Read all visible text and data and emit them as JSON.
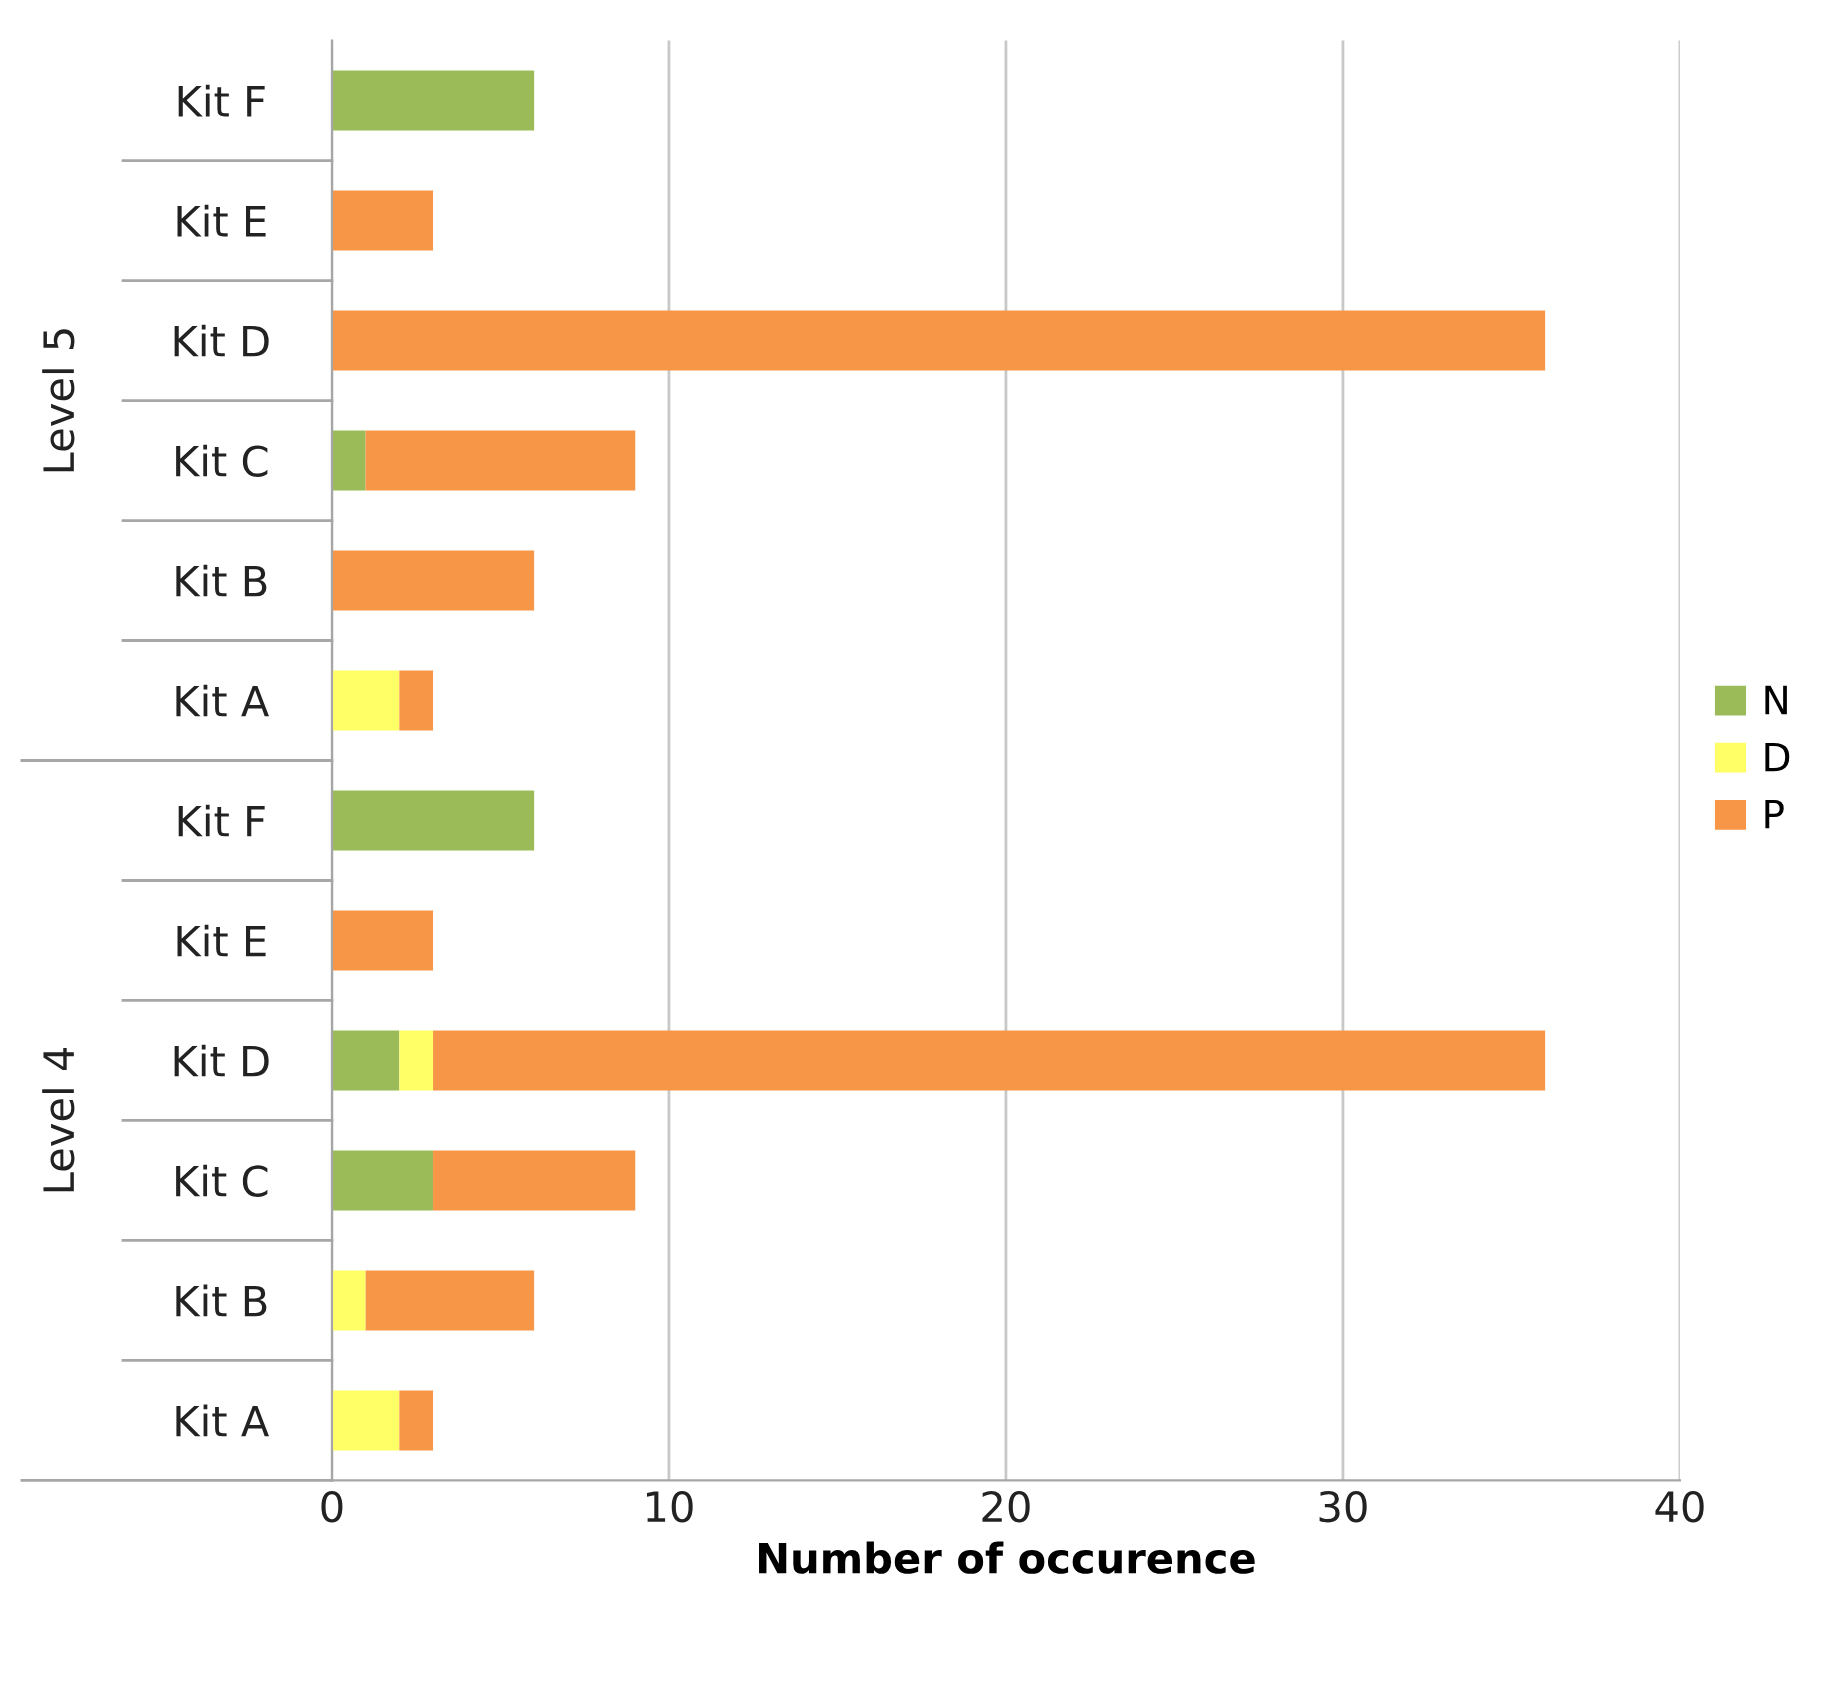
{
  "chart_data": {
    "type": "bar",
    "orientation": "horizontal",
    "stacked": true,
    "categories": [
      "Kit F",
      "Kit E",
      "Kit D",
      "Kit C",
      "Kit B",
      "Kit A",
      "Kit F",
      "Kit E",
      "Kit D",
      "Kit C",
      "Kit B",
      "Kit A"
    ],
    "series": [
      {
        "name": "N",
        "color": "#9bbb59",
        "values": [
          6,
          0,
          0,
          1,
          0,
          0,
          6,
          0,
          2,
          3,
          0,
          0
        ]
      },
      {
        "name": "D",
        "color": "#ffff66",
        "values": [
          0,
          0,
          0,
          0,
          0,
          2,
          0,
          0,
          1,
          0,
          1,
          2
        ]
      },
      {
        "name": "P",
        "color": "#f79646",
        "values": [
          0,
          3,
          36,
          8,
          6,
          1,
          0,
          3,
          33,
          6,
          5,
          1
        ]
      }
    ],
    "annotations": [
      "Level 5",
      "Level 4"
    ],
    "xlabel": "Number of occurence",
    "xlim": [
      0,
      40
    ],
    "xticks": [
      0,
      10,
      20,
      30,
      40
    ],
    "grid": "x",
    "legend": "right"
  }
}
